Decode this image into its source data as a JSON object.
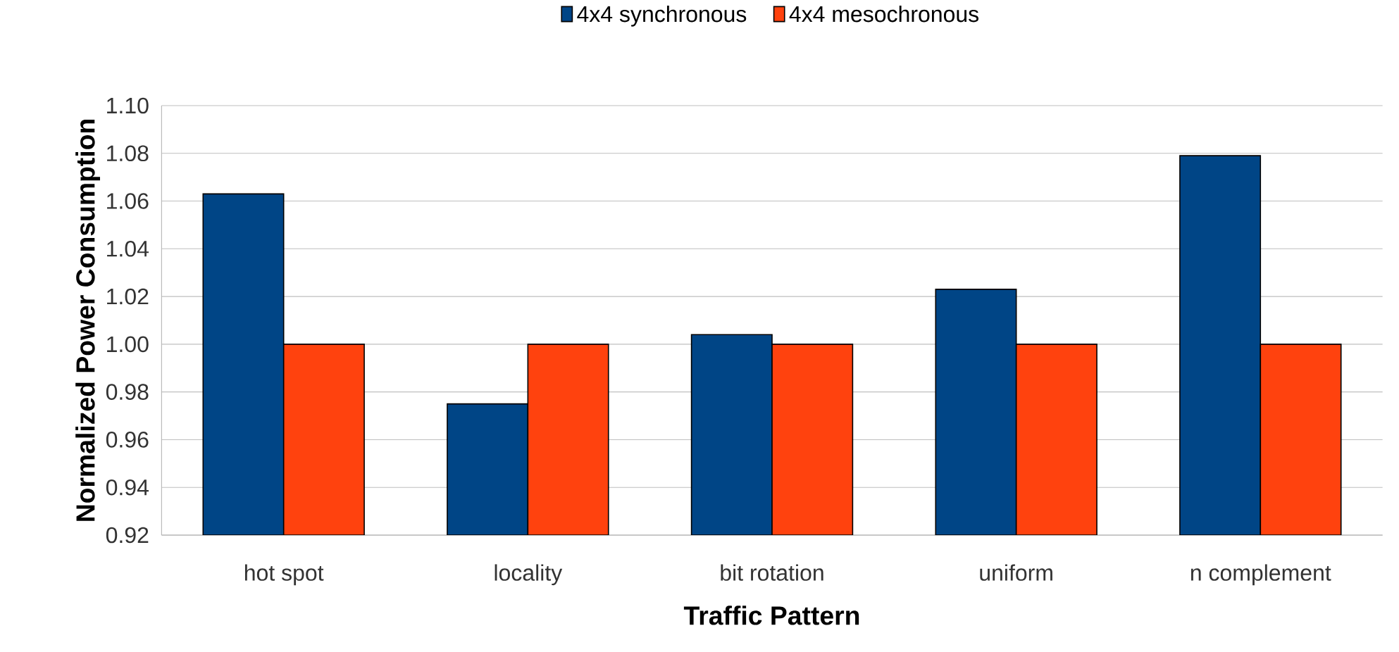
{
  "chart_data": {
    "type": "bar",
    "xlabel": "Traffic Pattern",
    "ylabel": "Normalized Power Consumption",
    "categories": [
      "hot spot",
      "locality",
      "bit rotation",
      "uniform",
      "n complement"
    ],
    "series": [
      {
        "name": "4x4 synchronous",
        "color": "#004586",
        "values": [
          1.063,
          0.975,
          1.004,
          1.023,
          1.079
        ]
      },
      {
        "name": "4x4 mesochronous",
        "color": "#ff420e",
        "values": [
          1.0,
          1.0,
          1.0,
          1.0,
          1.0
        ]
      }
    ],
    "ylim": [
      0.92,
      1.1
    ],
    "yticks": [
      {
        "value": 0.92,
        "label": "0.92"
      },
      {
        "value": 0.94,
        "label": "0.94"
      },
      {
        "value": 0.96,
        "label": "0.96"
      },
      {
        "value": 0.98,
        "label": "0.98"
      },
      {
        "value": 1.0,
        "label": "1.00"
      },
      {
        "value": 1.02,
        "label": "1.02"
      },
      {
        "value": 1.04,
        "label": "1.04"
      },
      {
        "value": 1.06,
        "label": "1.06"
      },
      {
        "value": 1.08,
        "label": "1.08"
      },
      {
        "value": 1.1,
        "label": "1.10"
      }
    ],
    "grid": "y",
    "legend": "top"
  }
}
